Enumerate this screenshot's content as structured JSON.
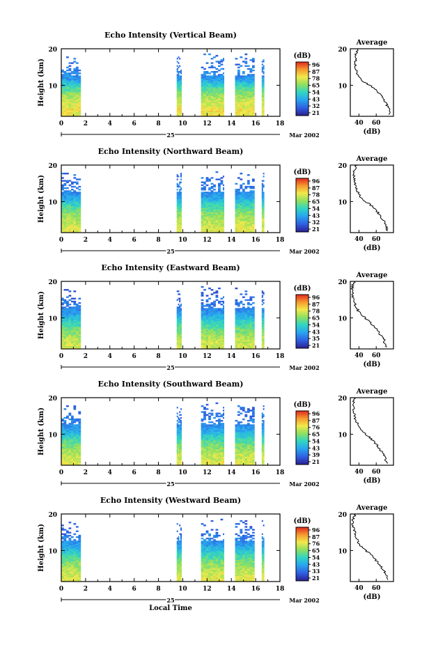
{
  "chart_data": [
    {
      "type": "heatmap",
      "title": "Echo Intensity (Vertical Beam)",
      "ylabel": "Height (km)",
      "xlabel": "",
      "x_ticks": [
        "0",
        "2",
        "4",
        "6",
        "8",
        "10",
        "12",
        "14",
        "16",
        "18"
      ],
      "xlim": [
        0,
        18
      ],
      "y_ticks": [
        "20",
        "10"
      ],
      "ylim": [
        1.5,
        20
      ],
      "date_label": "25",
      "month_label": "Mar 2002",
      "colorbar_unit": "(dB)",
      "colorbar_ticks": [
        "96",
        "87",
        "78",
        "65",
        "54",
        "43",
        "32",
        "21"
      ],
      "colorbar_range": [
        21,
        96
      ],
      "data_segments": [
        [
          0,
          1.6
        ],
        [
          9.5,
          9.9
        ],
        [
          11.5,
          13.4
        ],
        [
          14.3,
          15.9
        ],
        [
          16.5,
          16.7
        ]
      ],
      "avg_title": "Average",
      "avg_xlabel": "(dB)",
      "avg_x_ticks": [
        "40",
        "60"
      ],
      "avg_xlim": [
        30,
        80
      ],
      "avg_y_ticks": [
        "20",
        "10"
      ],
      "avg_height": [
        2,
        3,
        4,
        5,
        6,
        7,
        8,
        9,
        10,
        11,
        12,
        13,
        14,
        15,
        16,
        17,
        18,
        19,
        20
      ],
      "avg_db": [
        74,
        76,
        73,
        72,
        69,
        66,
        62,
        58,
        52,
        45,
        40,
        38,
        37,
        36,
        35,
        36,
        35,
        37,
        39
      ]
    },
    {
      "type": "heatmap",
      "title": "Echo Intensity (Northward Beam)",
      "ylabel": "Height (km)",
      "xlabel": "",
      "x_ticks": [
        "0",
        "2",
        "4",
        "6",
        "8",
        "10",
        "12",
        "14",
        "16",
        "18"
      ],
      "xlim": [
        0,
        18
      ],
      "y_ticks": [
        "20",
        "10"
      ],
      "ylim": [
        1.5,
        20
      ],
      "date_label": "25",
      "month_label": "Mar 2002",
      "colorbar_unit": "(dB)",
      "colorbar_ticks": [
        "96",
        "87",
        "78",
        "65",
        "54",
        "43",
        "32",
        "21"
      ],
      "colorbar_range": [
        21,
        96
      ],
      "data_segments": [
        [
          0,
          1.6
        ],
        [
          9.5,
          9.9
        ],
        [
          11.5,
          13.4
        ],
        [
          14.3,
          15.9
        ],
        [
          16.5,
          16.7
        ]
      ],
      "avg_title": "Average",
      "avg_xlabel": "(dB)",
      "avg_x_ticks": [
        "40",
        "60"
      ],
      "avg_xlim": [
        30,
        80
      ],
      "avg_y_ticks": [
        "20",
        "10"
      ],
      "avg_height": [
        2,
        3,
        4,
        5,
        6,
        7,
        8,
        9,
        10,
        11,
        12,
        13,
        14,
        15,
        16,
        17,
        18,
        19,
        20
      ],
      "avg_db": [
        73,
        72,
        70,
        68,
        65,
        62,
        58,
        54,
        48,
        43,
        40,
        38,
        36,
        35,
        35,
        34,
        33,
        35,
        37
      ]
    },
    {
      "type": "heatmap",
      "title": "Echo Intensity (Eastward Beam)",
      "ylabel": "Height (km)",
      "xlabel": "",
      "x_ticks": [
        "0",
        "2",
        "4",
        "6",
        "8",
        "10",
        "12",
        "14",
        "16",
        "18"
      ],
      "xlim": [
        0,
        18
      ],
      "y_ticks": [
        "20",
        "10"
      ],
      "ylim": [
        1.5,
        20
      ],
      "date_label": "25",
      "month_label": "Mar 2002",
      "colorbar_unit": "(dB)",
      "colorbar_ticks": [
        "96",
        "87",
        "78",
        "65",
        "54",
        "43",
        "35",
        "21"
      ],
      "colorbar_range": [
        21,
        96
      ],
      "data_segments": [
        [
          0,
          1.6
        ],
        [
          9.5,
          9.9
        ],
        [
          11.5,
          13.4
        ],
        [
          14.3,
          15.9
        ],
        [
          16.5,
          16.7
        ]
      ],
      "avg_title": "Average",
      "avg_xlabel": "(dB)",
      "avg_x_ticks": [
        "40",
        "60"
      ],
      "avg_xlim": [
        30,
        80
      ],
      "avg_y_ticks": [
        "20",
        "10"
      ],
      "avg_height": [
        2,
        3,
        4,
        5,
        6,
        7,
        8,
        9,
        10,
        11,
        12,
        13,
        14,
        15,
        16,
        17,
        18,
        19,
        20
      ],
      "avg_db": [
        72,
        70,
        69,
        66,
        63,
        60,
        56,
        52,
        47,
        42,
        39,
        37,
        35,
        34,
        33,
        33,
        32,
        33,
        35
      ]
    },
    {
      "type": "heatmap",
      "title": "Echo Intensity (Southward Beam)",
      "ylabel": "Height (km)",
      "xlabel": "",
      "x_ticks": [
        "0",
        "2",
        "4",
        "6",
        "8",
        "10",
        "12",
        "14",
        "16",
        "18"
      ],
      "xlim": [
        0,
        18
      ],
      "y_ticks": [
        "20",
        "10"
      ],
      "ylim": [
        1.5,
        20
      ],
      "date_label": "25",
      "month_label": "Mar 2002",
      "colorbar_unit": "(dB)",
      "colorbar_ticks": [
        "96",
        "87",
        "76",
        "65",
        "54",
        "43",
        "39",
        "21"
      ],
      "colorbar_range": [
        21,
        96
      ],
      "data_segments": [
        [
          0,
          1.6
        ],
        [
          9.5,
          9.9
        ],
        [
          11.5,
          13.4
        ],
        [
          14.3,
          15.9
        ],
        [
          16.5,
          16.7
        ]
      ],
      "avg_title": "Average",
      "avg_xlabel": "(dB)",
      "avg_x_ticks": [
        "40",
        "60"
      ],
      "avg_xlim": [
        30,
        80
      ],
      "avg_y_ticks": [
        "20",
        "10"
      ],
      "avg_height": [
        2,
        3,
        4,
        5,
        6,
        7,
        8,
        9,
        10,
        11,
        12,
        13,
        14,
        15,
        16,
        17,
        18,
        19,
        20
      ],
      "avg_db": [
        73,
        71,
        70,
        67,
        64,
        61,
        57,
        53,
        48,
        43,
        40,
        38,
        36,
        35,
        34,
        34,
        33,
        34,
        36
      ]
    },
    {
      "type": "heatmap",
      "title": "Echo Intensity (Westward Beam)",
      "ylabel": "Height (km)",
      "xlabel": "Local Time",
      "x_ticks": [
        "0",
        "2",
        "4",
        "6",
        "8",
        "10",
        "12",
        "14",
        "16",
        "18"
      ],
      "xlim": [
        0,
        18
      ],
      "y_ticks": [
        "20",
        "10"
      ],
      "ylim": [
        1.5,
        20
      ],
      "date_label": "25",
      "month_label": "Mar 2002",
      "colorbar_unit": "(dB)",
      "colorbar_ticks": [
        "96",
        "87",
        "76",
        "65",
        "54",
        "43",
        "33",
        "21"
      ],
      "colorbar_range": [
        21,
        96
      ],
      "data_segments": [
        [
          0,
          1.6
        ],
        [
          9.5,
          9.9
        ],
        [
          11.5,
          13.4
        ],
        [
          14.3,
          15.9
        ],
        [
          16.5,
          16.7
        ]
      ],
      "avg_title": "Average",
      "avg_xlabel": "(dB)",
      "avg_x_ticks": [
        "40",
        "60"
      ],
      "avg_xlim": [
        30,
        80
      ],
      "avg_y_ticks": [
        "20",
        "10"
      ],
      "avg_height": [
        2,
        3,
        4,
        5,
        6,
        7,
        8,
        9,
        10,
        11,
        12,
        13,
        14,
        15,
        16,
        17,
        18,
        19,
        20
      ],
      "avg_db": [
        73,
        72,
        70,
        67,
        64,
        61,
        57,
        53,
        48,
        43,
        40,
        38,
        36,
        35,
        34,
        33,
        33,
        34,
        36
      ]
    }
  ]
}
